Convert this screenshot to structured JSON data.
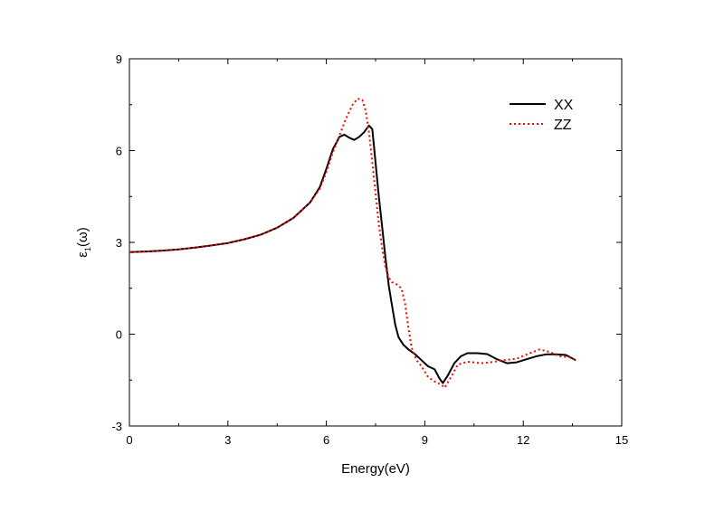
{
  "chart_data": {
    "type": "line",
    "xlabel": "Energy(eV)",
    "ylabel_main": "ε",
    "ylabel_sub": "1",
    "ylabel_rest": "(ω)",
    "xlim": [
      0,
      15
    ],
    "ylim": [
      -3,
      9
    ],
    "xticks": [
      0,
      3,
      6,
      9,
      12,
      15
    ],
    "xtick_labels": [
      "0",
      "3",
      "6",
      "9",
      "12",
      "15"
    ],
    "yticks": [
      -3,
      0,
      3,
      6,
      9
    ],
    "ytick_labels": [
      "-3",
      "0",
      "3",
      "6",
      "9"
    ],
    "grid": false,
    "legend_position": "top-right",
    "series": [
      {
        "name": "XX",
        "color": "#000000",
        "style": "solid",
        "points": [
          [
            0,
            2.68
          ],
          [
            0.5,
            2.7
          ],
          [
            1,
            2.73
          ],
          [
            1.5,
            2.77
          ],
          [
            2,
            2.83
          ],
          [
            2.5,
            2.9
          ],
          [
            3,
            2.98
          ],
          [
            3.5,
            3.1
          ],
          [
            4,
            3.25
          ],
          [
            4.5,
            3.48
          ],
          [
            5,
            3.8
          ],
          [
            5.5,
            4.3
          ],
          [
            5.8,
            4.8
          ],
          [
            6.0,
            5.4
          ],
          [
            6.2,
            6.05
          ],
          [
            6.4,
            6.45
          ],
          [
            6.55,
            6.52
          ],
          [
            6.7,
            6.42
          ],
          [
            6.85,
            6.35
          ],
          [
            7.0,
            6.45
          ],
          [
            7.15,
            6.6
          ],
          [
            7.3,
            6.82
          ],
          [
            7.4,
            6.7
          ],
          [
            7.5,
            5.6
          ],
          [
            7.6,
            4.5
          ],
          [
            7.7,
            3.5
          ],
          [
            7.8,
            2.5
          ],
          [
            7.9,
            1.6
          ],
          [
            8.0,
            0.95
          ],
          [
            8.1,
            0.3
          ],
          [
            8.2,
            -0.1
          ],
          [
            8.35,
            -0.35
          ],
          [
            8.5,
            -0.5
          ],
          [
            8.7,
            -0.65
          ],
          [
            8.9,
            -0.85
          ],
          [
            9.1,
            -1.05
          ],
          [
            9.3,
            -1.15
          ],
          [
            9.45,
            -1.45
          ],
          [
            9.55,
            -1.6
          ],
          [
            9.7,
            -1.35
          ],
          [
            9.9,
            -0.95
          ],
          [
            10.1,
            -0.72
          ],
          [
            10.3,
            -0.62
          ],
          [
            10.6,
            -0.62
          ],
          [
            10.9,
            -0.65
          ],
          [
            11.2,
            -0.82
          ],
          [
            11.5,
            -0.95
          ],
          [
            11.8,
            -0.92
          ],
          [
            12.1,
            -0.82
          ],
          [
            12.4,
            -0.72
          ],
          [
            12.7,
            -0.66
          ],
          [
            13.0,
            -0.66
          ],
          [
            13.3,
            -0.68
          ],
          [
            13.6,
            -0.85
          ]
        ]
      },
      {
        "name": "ZZ",
        "color": "#ff0000",
        "style": "dotted",
        "points": [
          [
            0,
            2.68
          ],
          [
            0.5,
            2.7
          ],
          [
            1,
            2.73
          ],
          [
            1.5,
            2.77
          ],
          [
            2,
            2.83
          ],
          [
            2.5,
            2.9
          ],
          [
            3,
            2.98
          ],
          [
            3.5,
            3.1
          ],
          [
            4,
            3.25
          ],
          [
            4.5,
            3.48
          ],
          [
            5,
            3.8
          ],
          [
            5.5,
            4.3
          ],
          [
            5.8,
            4.75
          ],
          [
            6.0,
            5.3
          ],
          [
            6.2,
            5.95
          ],
          [
            6.4,
            6.5
          ],
          [
            6.6,
            7.05
          ],
          [
            6.8,
            7.5
          ],
          [
            6.95,
            7.7
          ],
          [
            7.1,
            7.65
          ],
          [
            7.2,
            7.3
          ],
          [
            7.3,
            6.6
          ],
          [
            7.4,
            5.6
          ],
          [
            7.5,
            4.6
          ],
          [
            7.6,
            3.6
          ],
          [
            7.7,
            2.8
          ],
          [
            7.8,
            2.2
          ],
          [
            7.9,
            1.85
          ],
          [
            8.0,
            1.7
          ],
          [
            8.2,
            1.6
          ],
          [
            8.3,
            1.45
          ],
          [
            8.4,
            1.0
          ],
          [
            8.5,
            0.2
          ],
          [
            8.6,
            -0.45
          ],
          [
            8.75,
            -0.85
          ],
          [
            8.9,
            -1.05
          ],
          [
            9.1,
            -1.4
          ],
          [
            9.3,
            -1.55
          ],
          [
            9.5,
            -1.65
          ],
          [
            9.6,
            -1.75
          ],
          [
            9.8,
            -1.4
          ],
          [
            10.0,
            -1.0
          ],
          [
            10.3,
            -0.9
          ],
          [
            10.7,
            -0.95
          ],
          [
            11.0,
            -0.92
          ],
          [
            11.4,
            -0.85
          ],
          [
            11.8,
            -0.8
          ],
          [
            12.2,
            -0.62
          ],
          [
            12.5,
            -0.5
          ],
          [
            12.8,
            -0.58
          ],
          [
            13.1,
            -0.72
          ],
          [
            13.4,
            -0.75
          ],
          [
            13.6,
            -0.85
          ]
        ]
      }
    ]
  }
}
